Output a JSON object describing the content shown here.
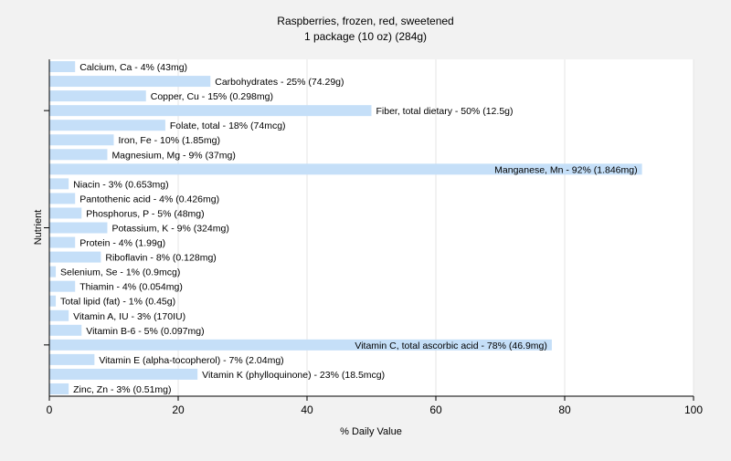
{
  "chart_data": {
    "type": "bar",
    "orientation": "horizontal",
    "title": "Raspberries, frozen, red, sweetened",
    "subtitle": "1 package (10 oz) (284g)",
    "xlabel": "% Daily Value",
    "ylabel": "Nutrient",
    "xlim": [
      0,
      100
    ],
    "xticks": [
      0,
      20,
      40,
      60,
      80,
      100
    ],
    "grid": true,
    "colors": {
      "bar": "#c5dff8",
      "background": "#f2f2f2",
      "plot_background": "#ffffff",
      "grid": "#e6e6e6",
      "axis": "#000000"
    },
    "categories": [
      "Calcium, Ca",
      "Carbohydrates",
      "Copper, Cu",
      "Fiber, total dietary",
      "Folate, total",
      "Iron, Fe",
      "Magnesium, Mg",
      "Manganese, Mn",
      "Niacin",
      "Pantothenic acid",
      "Phosphorus, P",
      "Potassium, K",
      "Protein",
      "Riboflavin",
      "Selenium, Se",
      "Thiamin",
      "Total lipid (fat)",
      "Vitamin A, IU",
      "Vitamin B-6",
      "Vitamin C, total ascorbic acid",
      "Vitamin E (alpha-tocopherol)",
      "Vitamin K (phylloquinone)",
      "Zinc, Zn"
    ],
    "values": [
      4,
      25,
      15,
      50,
      18,
      10,
      9,
      92,
      3,
      4,
      5,
      9,
      4,
      8,
      1,
      4,
      1,
      3,
      5,
      78,
      7,
      23,
      3
    ],
    "labels": [
      "Calcium, Ca - 4% (43mg)",
      "Carbohydrates - 25% (74.29g)",
      "Copper, Cu - 15% (0.298mg)",
      "Fiber, total dietary - 50% (12.5g)",
      "Folate, total - 18% (74mcg)",
      "Iron, Fe - 10% (1.85mg)",
      "Magnesium, Mg - 9% (37mg)",
      "Manganese, Mn - 92% (1.846mg)",
      "Niacin - 3% (0.653mg)",
      "Pantothenic acid - 4% (0.426mg)",
      "Phosphorus, P - 5% (48mg)",
      "Potassium, K - 9% (324mg)",
      "Protein - 4% (1.99g)",
      "Riboflavin - 8% (0.128mg)",
      "Selenium, Se - 1% (0.9mcg)",
      "Thiamin - 4% (0.054mg)",
      "Total lipid (fat) - 1% (0.45g)",
      "Vitamin A, IU - 3% (170IU)",
      "Vitamin B-6 - 5% (0.097mg)",
      "Vitamin C, total ascorbic acid - 78% (46.9mg)",
      "Vitamin E (alpha-tocopherol) - 7% (2.04mg)",
      "Vitamin K (phylloquinone) - 23% (18.5mcg)",
      "Zinc, Zn - 3% (0.51mg)"
    ]
  }
}
